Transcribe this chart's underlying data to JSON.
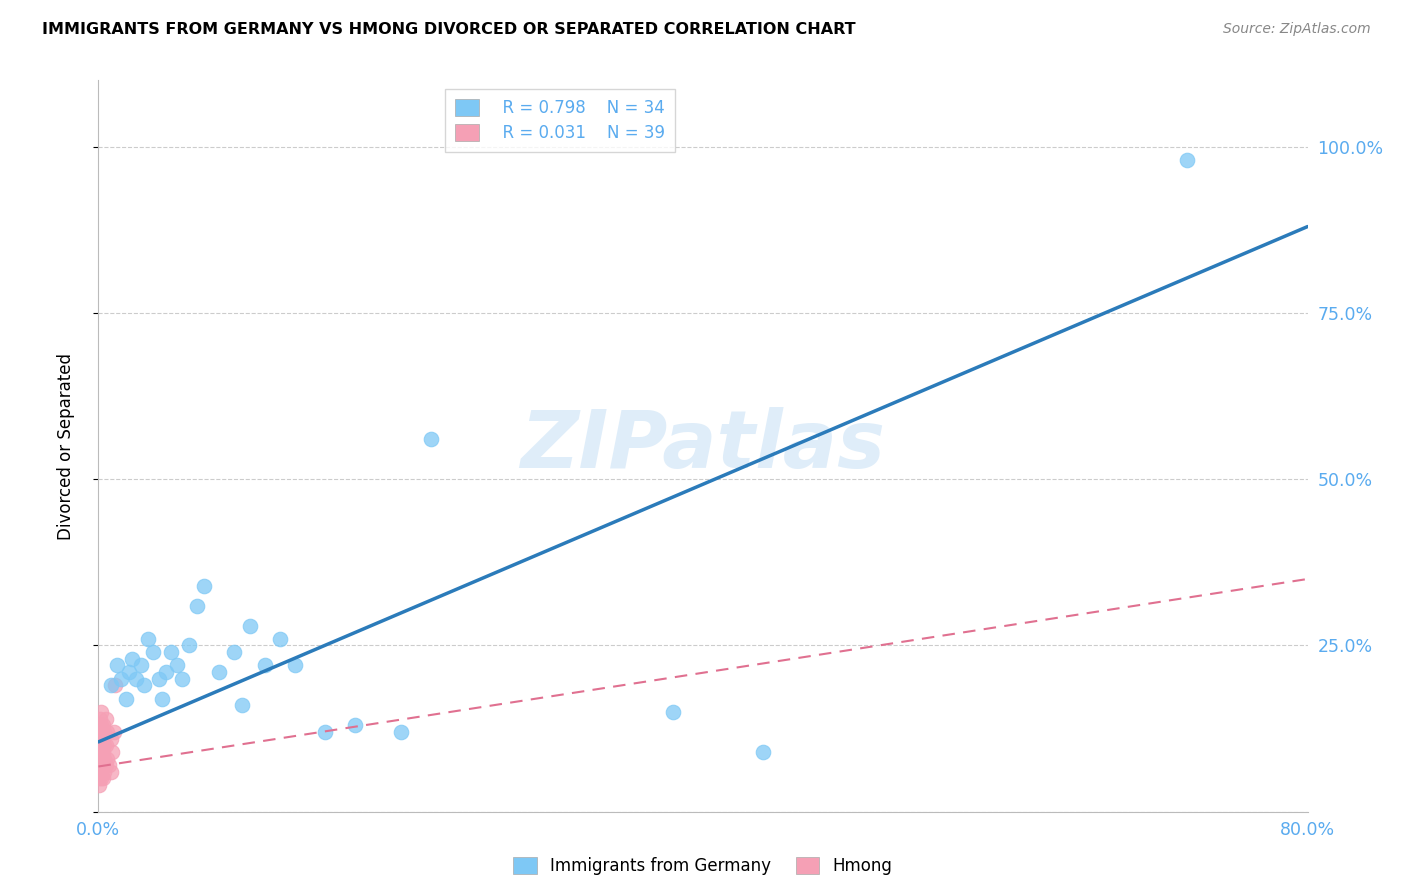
{
  "title": "IMMIGRANTS FROM GERMANY VS HMONG DIVORCED OR SEPARATED CORRELATION CHART",
  "source": "Source: ZipAtlas.com",
  "ylabel": "Divorced or Separated",
  "xlim": [
    0.0,
    0.8
  ],
  "ylim": [
    0.0,
    1.1
  ],
  "legend_r1": "R = 0.798",
  "legend_n1": "N = 34",
  "legend_r2": "R = 0.031",
  "legend_n2": "N = 39",
  "blue_color": "#7ec8f5",
  "pink_color": "#f5a0b5",
  "trendline_blue": "#2b7bba",
  "trendline_pink": "#e07090",
  "watermark_text": "ZIPatlas",
  "blue_trendline_x0": 0.0,
  "blue_trendline_y0": 0.105,
  "blue_trendline_x1": 0.8,
  "blue_trendline_y1": 0.88,
  "pink_trendline_x0": 0.0,
  "pink_trendline_y0": 0.068,
  "pink_trendline_x1": 0.8,
  "pink_trendline_y1": 0.35,
  "germany_x": [
    0.008,
    0.012,
    0.015,
    0.018,
    0.02,
    0.022,
    0.025,
    0.028,
    0.03,
    0.033,
    0.036,
    0.04,
    0.042,
    0.045,
    0.048,
    0.052,
    0.055,
    0.06,
    0.065,
    0.07,
    0.08,
    0.09,
    0.095,
    0.1,
    0.11,
    0.12,
    0.13,
    0.15,
    0.17,
    0.2,
    0.22,
    0.38,
    0.44,
    0.72
  ],
  "germany_y": [
    0.19,
    0.22,
    0.2,
    0.17,
    0.21,
    0.23,
    0.2,
    0.22,
    0.19,
    0.26,
    0.24,
    0.2,
    0.17,
    0.21,
    0.24,
    0.22,
    0.2,
    0.25,
    0.31,
    0.34,
    0.21,
    0.24,
    0.16,
    0.28,
    0.22,
    0.26,
    0.22,
    0.12,
    0.13,
    0.12,
    0.56,
    0.15,
    0.09,
    0.98
  ],
  "hmong_x": [
    0.0005,
    0.0006,
    0.0007,
    0.0008,
    0.0009,
    0.001,
    0.001,
    0.0012,
    0.0013,
    0.0014,
    0.0015,
    0.0016,
    0.0017,
    0.0018,
    0.002,
    0.002,
    0.002,
    0.0022,
    0.0025,
    0.003,
    0.003,
    0.003,
    0.003,
    0.003,
    0.0035,
    0.004,
    0.004,
    0.004,
    0.005,
    0.005,
    0.005,
    0.006,
    0.006,
    0.007,
    0.008,
    0.008,
    0.009,
    0.01,
    0.011
  ],
  "hmong_y": [
    0.05,
    0.08,
    0.04,
    0.1,
    0.07,
    0.06,
    0.09,
    0.12,
    0.14,
    0.07,
    0.1,
    0.05,
    0.12,
    0.08,
    0.13,
    0.06,
    0.15,
    0.1,
    0.08,
    0.05,
    0.09,
    0.13,
    0.07,
    0.11,
    0.08,
    0.06,
    0.1,
    0.12,
    0.07,
    0.1,
    0.14,
    0.08,
    0.12,
    0.07,
    0.11,
    0.06,
    0.09,
    0.12,
    0.19
  ]
}
